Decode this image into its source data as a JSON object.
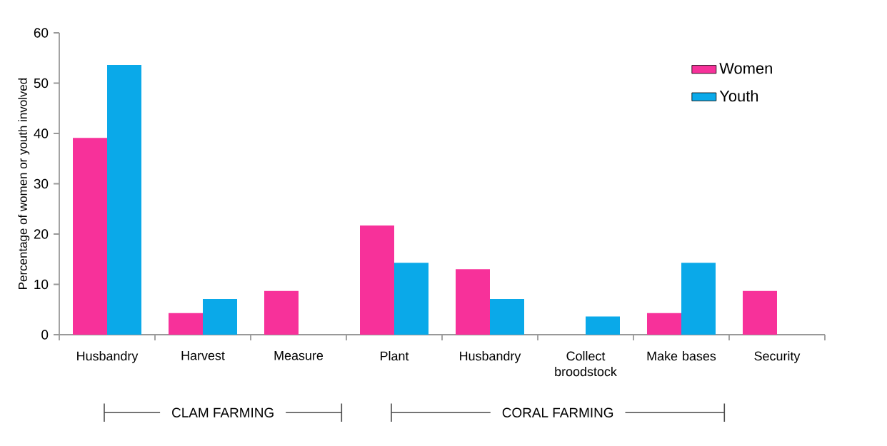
{
  "chart_data": {
    "type": "bar",
    "ylabel": "Percentage of women or youth involved",
    "categories": [
      "Husbandry",
      "Harvest",
      "Measure",
      "Plant",
      "Husbandry",
      "Collect broodstock",
      "Make bases",
      "Security"
    ],
    "series": [
      {
        "name": "Women",
        "color": "#f7319a",
        "values": [
          39.1,
          4.3,
          8.7,
          21.7,
          13.0,
          null,
          4.3,
          8.7
        ]
      },
      {
        "name": "Youth",
        "color": "#0aa9e9",
        "values": [
          53.6,
          7.1,
          null,
          14.3,
          7.1,
          3.6,
          14.3,
          null
        ]
      }
    ],
    "ylim": [
      0,
      60
    ],
    "yticks": [
      0,
      10,
      20,
      30,
      40,
      50,
      60
    ],
    "annotations": [
      "CLAM FARMING",
      "CORAL FARMING"
    ],
    "legend": "top right",
    "grid": false
  }
}
